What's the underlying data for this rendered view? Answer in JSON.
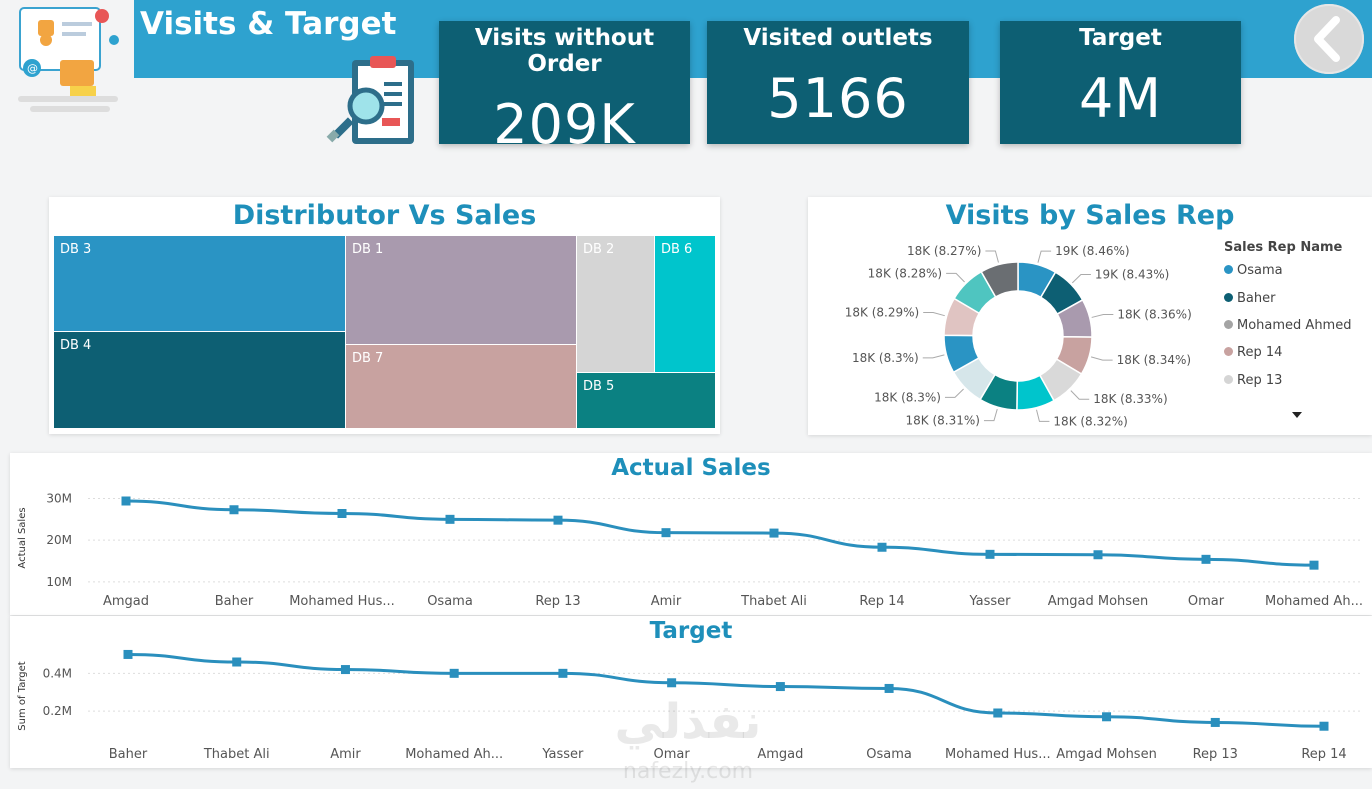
{
  "header": {
    "title": "Visits & Target"
  },
  "kpis": [
    {
      "label": "Visits without Order",
      "value": "209K"
    },
    {
      "label": "Visited outlets",
      "value": "5166"
    },
    {
      "label": "Target",
      "value": "4M"
    }
  ],
  "treemap": {
    "title": "Distributor Vs Sales",
    "tiles": [
      {
        "label": "DB 3",
        "color": "#2a94c4"
      },
      {
        "label": "DB 4",
        "color": "#0d5f73"
      },
      {
        "label": "DB 1",
        "color": "#a99aae"
      },
      {
        "label": "DB 7",
        "color": "#c8a2a0"
      },
      {
        "label": "DB 2",
        "color": "#d5d5d5"
      },
      {
        "label": "DB 6",
        "color": "#00c5cc"
      },
      {
        "label": "DB 5",
        "color": "#0b8182"
      }
    ]
  },
  "donut": {
    "title": "Visits by Sales Rep",
    "legend_title": "Sales Rep Name",
    "legend": [
      {
        "name": "Osama",
        "color": "#2a94c4"
      },
      {
        "name": "Baher",
        "color": "#0d5f73"
      },
      {
        "name": "Mohamed Ahmed",
        "color": "#a4a4a4"
      },
      {
        "name": "Rep 14",
        "color": "#c8a2a0"
      },
      {
        "name": "Rep 13",
        "color": "#d5d5d5"
      }
    ],
    "slices": [
      {
        "label": "19K (8.46%)",
        "value": 8.46,
        "color": "#2a94c4"
      },
      {
        "label": "19K (8.43%)",
        "value": 8.43,
        "color": "#0d5f73"
      },
      {
        "label": "18K (8.36%)",
        "value": 8.36,
        "color": "#a99aae"
      },
      {
        "label": "18K (8.34%)",
        "value": 8.34,
        "color": "#c8a2a0"
      },
      {
        "label": "18K (8.33%)",
        "value": 8.33,
        "color": "#d9d9d9"
      },
      {
        "label": "18K (8.32%)",
        "value": 8.32,
        "color": "#00c5cc"
      },
      {
        "label": "18K (8.31%)",
        "value": 8.31,
        "color": "#0b8182"
      },
      {
        "label": "18K (8.3%)",
        "value": 8.3,
        "color": "#d6e6ea"
      },
      {
        "label": "18K (8.3%)",
        "value": 8.3,
        "color": "#2a94c4"
      },
      {
        "label": "18K (8.29%)",
        "value": 8.29,
        "color": "#e0c4c2"
      },
      {
        "label": "18K (8.28%)",
        "value": 8.28,
        "color": "#4fc5c0"
      },
      {
        "label": "18K (8.27%)",
        "value": 8.27,
        "color": "#6a6e72"
      }
    ]
  },
  "chart_data": [
    {
      "type": "line",
      "title": "Actual Sales",
      "ylabel": "Actual Sales",
      "categories": [
        "Amgad",
        "Baher",
        "Mohamed Hus...",
        "Osama",
        "Rep 13",
        "Amir",
        "Thabet Ali",
        "Rep 14",
        "Yasser",
        "Amgad Mohsen",
        "Omar",
        "Mohamed Ah..."
      ],
      "values": [
        29.4,
        27.3,
        26.4,
        25.0,
        24.8,
        21.8,
        21.7,
        18.3,
        16.6,
        16.5,
        15.4,
        14.0
      ],
      "yticks": [
        "30M",
        "20M",
        "10M"
      ],
      "yticks_values": [
        30,
        20,
        10
      ],
      "ylim": [
        9,
        33
      ],
      "grid": true,
      "color": "#2a8fbd"
    },
    {
      "type": "line",
      "title": "Target",
      "ylabel": "Sum of Target",
      "categories": [
        "Baher",
        "Thabet Ali",
        "Amir",
        "Mohamed Ah...",
        "Yasser",
        "Omar",
        "Amgad",
        "Osama",
        "Mohamed Hus...",
        "Amgad Mohsen",
        "Rep 13",
        "Rep 14"
      ],
      "values": [
        0.5,
        0.46,
        0.42,
        0.4,
        0.4,
        0.35,
        0.33,
        0.32,
        0.19,
        0.17,
        0.14,
        0.12
      ],
      "yticks": [
        "0.4M",
        "0.2M"
      ],
      "yticks_values": [
        0.4,
        0.2
      ],
      "ylim": [
        0.1,
        0.55
      ],
      "grid": true,
      "color": "#2a8fbd"
    }
  ],
  "watermark": {
    "arabic": "نفذلي",
    "latin": "nafezly.com"
  }
}
